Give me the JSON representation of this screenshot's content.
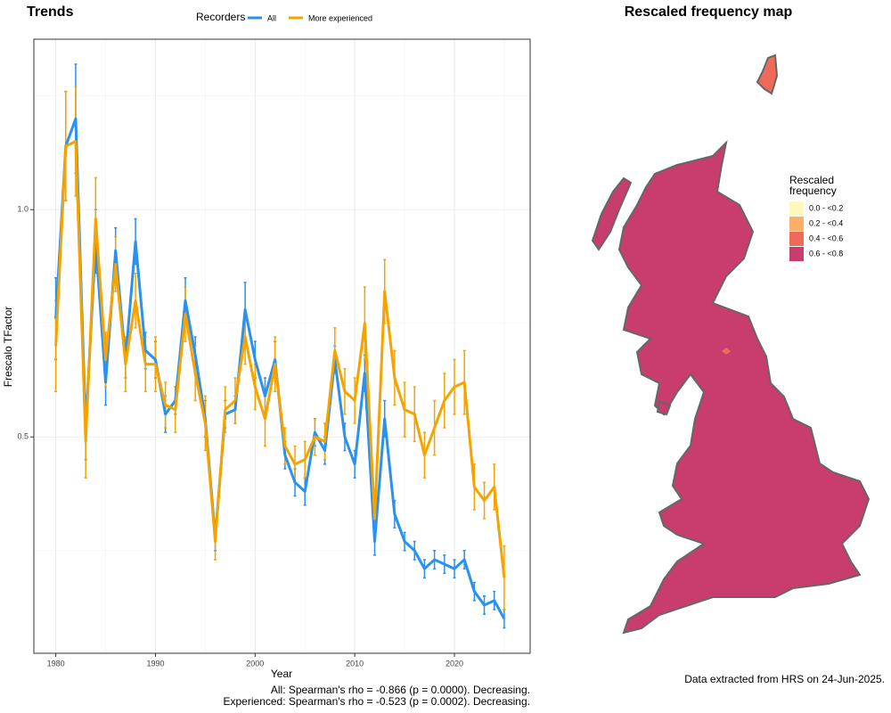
{
  "chart_data": {
    "type": "line",
    "title": "Trends",
    "xlabel": "Year",
    "ylabel": "Frescalo TFactor",
    "legend_title": "Recorders",
    "legend_position": "top",
    "x": [
      1980,
      1981,
      1982,
      1983,
      1984,
      1985,
      1986,
      1987,
      1988,
      1989,
      1990,
      1991,
      1992,
      1993,
      1994,
      1995,
      1996,
      1997,
      1998,
      1999,
      2000,
      2001,
      2002,
      2003,
      2004,
      2005,
      2006,
      2007,
      2008,
      2009,
      2010,
      2011,
      2012,
      2013,
      2014,
      2015,
      2016,
      2017,
      2018,
      2019,
      2020,
      2021,
      2022,
      2023,
      2024,
      2025
    ],
    "series": [
      {
        "name": "All",
        "color": "#2a91ee",
        "values": [
          0.76,
          1.14,
          1.2,
          0.52,
          0.93,
          0.62,
          0.91,
          0.67,
          0.93,
          0.69,
          0.67,
          0.55,
          0.58,
          0.8,
          0.68,
          0.54,
          0.28,
          0.55,
          0.56,
          0.78,
          0.67,
          0.59,
          0.67,
          0.46,
          0.4,
          0.38,
          0.51,
          0.47,
          0.67,
          0.5,
          0.44,
          0.64,
          0.27,
          0.54,
          0.33,
          0.27,
          0.25,
          0.21,
          0.23,
          0.22,
          0.21,
          0.23,
          0.16,
          0.13,
          0.14,
          0.1
        ],
        "errors": [
          0.09,
          0.12,
          0.12,
          0.07,
          0.07,
          0.05,
          0.05,
          0.04,
          0.05,
          0.04,
          0.04,
          0.04,
          0.03,
          0.05,
          0.04,
          0.04,
          0.03,
          0.03,
          0.03,
          0.06,
          0.04,
          0.04,
          0.04,
          0.03,
          0.03,
          0.03,
          0.03,
          0.03,
          0.03,
          0.03,
          0.03,
          0.04,
          0.03,
          0.04,
          0.03,
          0.02,
          0.02,
          0.02,
          0.02,
          0.02,
          0.02,
          0.02,
          0.02,
          0.02,
          0.02,
          0.02
        ]
      },
      {
        "name": "More experienced",
        "color": "#f5a300",
        "values": [
          0.7,
          1.14,
          1.15,
          0.49,
          0.98,
          0.67,
          0.88,
          0.66,
          0.8,
          0.66,
          0.66,
          0.57,
          0.56,
          0.77,
          0.64,
          0.53,
          0.27,
          0.56,
          0.58,
          0.72,
          0.61,
          0.54,
          0.66,
          0.48,
          0.44,
          0.45,
          0.5,
          0.49,
          0.69,
          0.6,
          0.58,
          0.75,
          0.32,
          0.82,
          0.63,
          0.56,
          0.55,
          0.46,
          0.52,
          0.58,
          0.61,
          0.62,
          0.39,
          0.36,
          0.39,
          0.19
        ],
        "errors": [
          0.1,
          0.12,
          0.12,
          0.08,
          0.09,
          0.06,
          0.06,
          0.06,
          0.06,
          0.06,
          0.06,
          0.05,
          0.05,
          0.06,
          0.06,
          0.06,
          0.04,
          0.05,
          0.05,
          0.06,
          0.05,
          0.06,
          0.06,
          0.04,
          0.04,
          0.04,
          0.04,
          0.04,
          0.05,
          0.05,
          0.05,
          0.08,
          0.05,
          0.07,
          0.06,
          0.06,
          0.06,
          0.05,
          0.06,
          0.06,
          0.06,
          0.07,
          0.05,
          0.04,
          0.05,
          0.07
        ]
      }
    ],
    "xlim": [
      1977.8,
      2027.6
    ],
    "xticks": [
      1980,
      1990,
      2000,
      2010,
      2020
    ],
    "x_minor_grid": [
      1985,
      1995,
      2005,
      2015,
      2025
    ],
    "ylim": [
      0.024,
      1.375
    ],
    "yticks": [
      0.5,
      {
        "value": 1,
        "label": "1.0"
      }
    ],
    "y_minor_grid": [
      0.25,
      0.75,
      1.25
    ],
    "grid": true,
    "footnotes": [
      "All: Spearman's rho = -0.866 (p = 0.0000). Decreasing.",
      "Experienced: Spearman's rho = -0.523 (p = 0.0002). Decreasing."
    ]
  },
  "map": {
    "title": "Rescaled frequency map",
    "legend_title": [
      "Rescaled",
      "frequency"
    ],
    "legend": [
      {
        "label": "0.0 - <0.2",
        "color": "#fff7bc"
      },
      {
        "label": "0.2 - <0.4",
        "color": "#fdae6b"
      },
      {
        "label": "0.4 - <0.6",
        "color": "#f06a5a"
      },
      {
        "label": "0.6 - <0.8",
        "color": "#c83c6e"
      }
    ],
    "caption": "Data extracted from HRS on 24-Jun-2025."
  }
}
